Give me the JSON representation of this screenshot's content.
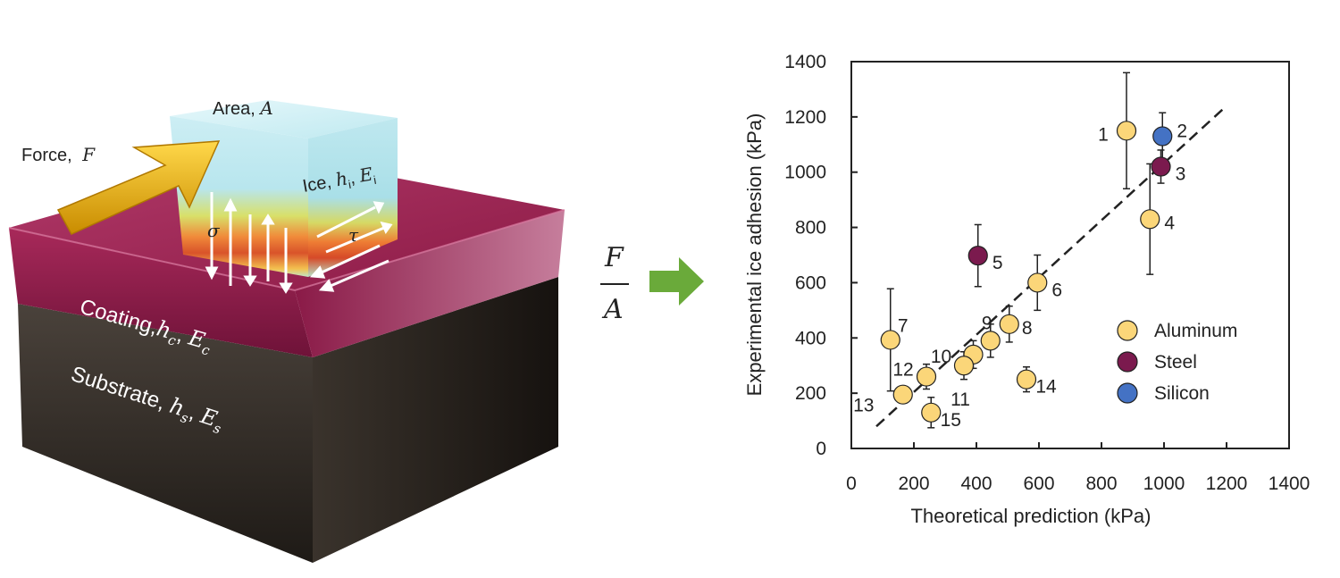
{
  "illustration": {
    "area_label": "Area, ",
    "area_symbol": "A",
    "force_label": "Force, ",
    "force_symbol": "F",
    "ice_label": "Ice, ",
    "ice_symbols": "h",
    "ice_sub": "i",
    "ice_E": "E",
    "sigma": "σ",
    "tau": "τ",
    "coating_label": "Coating,",
    "coating_h": "h",
    "coating_sub": "c",
    "coating_E": "E",
    "substrate_label": "Substrate, ",
    "substrate_h": "h",
    "substrate_sub": "s",
    "substrate_E": "E",
    "colors": {
      "ice": "#bfe9f0",
      "coating": "#8c1a45",
      "substrate": "#2a2520",
      "force_arrow": "#f2b705"
    }
  },
  "fraction": {
    "numerator": "F",
    "denominator": "A",
    "arrow_color": "#6aaa3a"
  },
  "chart_data": {
    "type": "scatter",
    "xlabel": "Theoretical prediction (kPa)",
    "ylabel": "Experimental ice adhesion (kPa)",
    "xlim": [
      0,
      1400
    ],
    "ylim": [
      0,
      1400
    ],
    "x_ticks": [
      0,
      200,
      400,
      600,
      800,
      1000,
      1200,
      1400
    ],
    "y_ticks": [
      0,
      200,
      400,
      600,
      800,
      1000,
      1200,
      1400
    ],
    "grid": false,
    "legend_position": "bottom-right",
    "series": [
      {
        "name": "Aluminum",
        "color": "#fbd679"
      },
      {
        "name": "Steel",
        "color": "#7b1a4e"
      },
      {
        "name": "Silicon",
        "color": "#4472c4"
      }
    ],
    "points": [
      {
        "label": "1",
        "x": 880,
        "y": 1150,
        "err": 210,
        "series": "Aluminum"
      },
      {
        "label": "2",
        "x": 995,
        "y": 1130,
        "err": 85,
        "series": "Silicon"
      },
      {
        "label": "3",
        "x": 990,
        "y": 1020,
        "err": 60,
        "series": "Steel"
      },
      {
        "label": "4",
        "x": 955,
        "y": 830,
        "err": 200,
        "series": "Aluminum"
      },
      {
        "label": "5",
        "x": 405,
        "y": 698,
        "err": 112,
        "series": "Steel"
      },
      {
        "label": "6",
        "x": 595,
        "y": 600,
        "err": 100,
        "series": "Aluminum"
      },
      {
        "label": "7",
        "x": 125,
        "y": 393,
        "err": 185,
        "series": "Aluminum"
      },
      {
        "label": "8",
        "x": 505,
        "y": 450,
        "err": 65,
        "series": "Aluminum"
      },
      {
        "label": "9",
        "x": 445,
        "y": 390,
        "err": 60,
        "series": "Aluminum"
      },
      {
        "label": "10",
        "x": 390,
        "y": 340,
        "err": 50,
        "series": "Aluminum"
      },
      {
        "label": "11",
        "x": 360,
        "y": 300,
        "err": 50,
        "series": "Aluminum"
      },
      {
        "label": "12",
        "x": 240,
        "y": 260,
        "err": 45,
        "series": "Aluminum"
      },
      {
        "label": "13",
        "x": 165,
        "y": 195,
        "err": 25,
        "series": "Aluminum"
      },
      {
        "label": "14",
        "x": 560,
        "y": 250,
        "err": 45,
        "series": "Aluminum"
      },
      {
        "label": "15",
        "x": 255,
        "y": 130,
        "err": 55,
        "series": "Aluminum"
      }
    ],
    "fit_line": {
      "x": [
        80,
        1200
      ],
      "y": [
        80,
        1240
      ]
    }
  }
}
